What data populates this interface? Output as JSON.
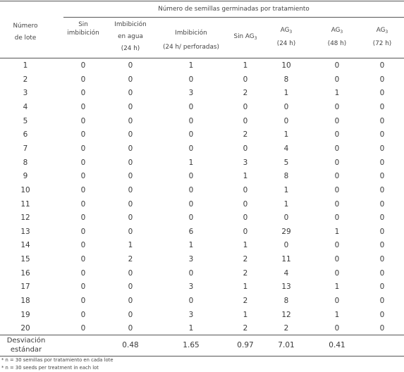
{
  "group_header": "Número de semillas germinadas por tratamiento",
  "lot_header": [
    "Número",
    "de lote"
  ],
  "columns": [
    {
      "lines": [
        "Sin",
        "imbibición"
      ]
    },
    {
      "lines": [
        "Imbibición",
        "en agua",
        "(24 h)"
      ]
    },
    {
      "lines": [
        "Imbibición",
        "(24 h/ perforadas)"
      ]
    },
    {
      "lines": [
        "Sin AG",
        "3"
      ],
      "sub": true
    },
    {
      "lines": [
        "AG",
        "3",
        "(24 h)"
      ],
      "sub": true
    },
    {
      "lines": [
        "AG",
        "3",
        "(48 h)"
      ],
      "sub": true
    },
    {
      "lines": [
        "AG",
        "3",
        "(72 h)"
      ],
      "sub": true
    }
  ],
  "rows": [
    [
      "1",
      "0",
      "0",
      "1",
      "1",
      "10",
      "0",
      "0"
    ],
    [
      "2",
      "0",
      "0",
      "0",
      "0",
      "8",
      "0",
      "0"
    ],
    [
      "3",
      "0",
      "0",
      "3",
      "2",
      "1",
      "1",
      "0"
    ],
    [
      "4",
      "0",
      "0",
      "0",
      "0",
      "0",
      "0",
      "0"
    ],
    [
      "5",
      "0",
      "0",
      "0",
      "0",
      "0",
      "0",
      "0"
    ],
    [
      "6",
      "0",
      "0",
      "0",
      "2",
      "1",
      "0",
      "0"
    ],
    [
      "7",
      "0",
      "0",
      "0",
      "0",
      "4",
      "0",
      "0"
    ],
    [
      "8",
      "0",
      "0",
      "1",
      "3",
      "5",
      "0",
      "0"
    ],
    [
      "9",
      "0",
      "0",
      "0",
      "1",
      "8",
      "0",
      "0"
    ],
    [
      "10",
      "0",
      "0",
      "0",
      "0",
      "1",
      "0",
      "0"
    ],
    [
      "11",
      "0",
      "0",
      "0",
      "0",
      "1",
      "0",
      "0"
    ],
    [
      "12",
      "0",
      "0",
      "0",
      "0",
      "0",
      "0",
      "0"
    ],
    [
      "13",
      "0",
      "0",
      "6",
      "0",
      "29",
      "1",
      "0"
    ],
    [
      "14",
      "0",
      "1",
      "1",
      "1",
      "0",
      "0",
      "0"
    ],
    [
      "15",
      "0",
      "2",
      "3",
      "2",
      "11",
      "0",
      "0"
    ],
    [
      "16",
      "0",
      "0",
      "0",
      "2",
      "4",
      "0",
      "0"
    ],
    [
      "17",
      "0",
      "0",
      "3",
      "1",
      "13",
      "1",
      "0"
    ],
    [
      "18",
      "0",
      "0",
      "0",
      "2",
      "8",
      "0",
      "0"
    ],
    [
      "19",
      "0",
      "0",
      "3",
      "1",
      "12",
      "1",
      "0"
    ],
    [
      "20",
      "0",
      "0",
      "1",
      "2",
      "2",
      "0",
      "0"
    ]
  ],
  "std_label": [
    "Desviación",
    "estándar"
  ],
  "std_values": [
    "",
    "0.48",
    "1.65",
    "0.97",
    "7.01",
    "0.41",
    ""
  ],
  "footnotes": [
    "* n = 30 semillas por tratamiento en cada lote",
    "* n = 30 seeds per treatment in each lot"
  ]
}
